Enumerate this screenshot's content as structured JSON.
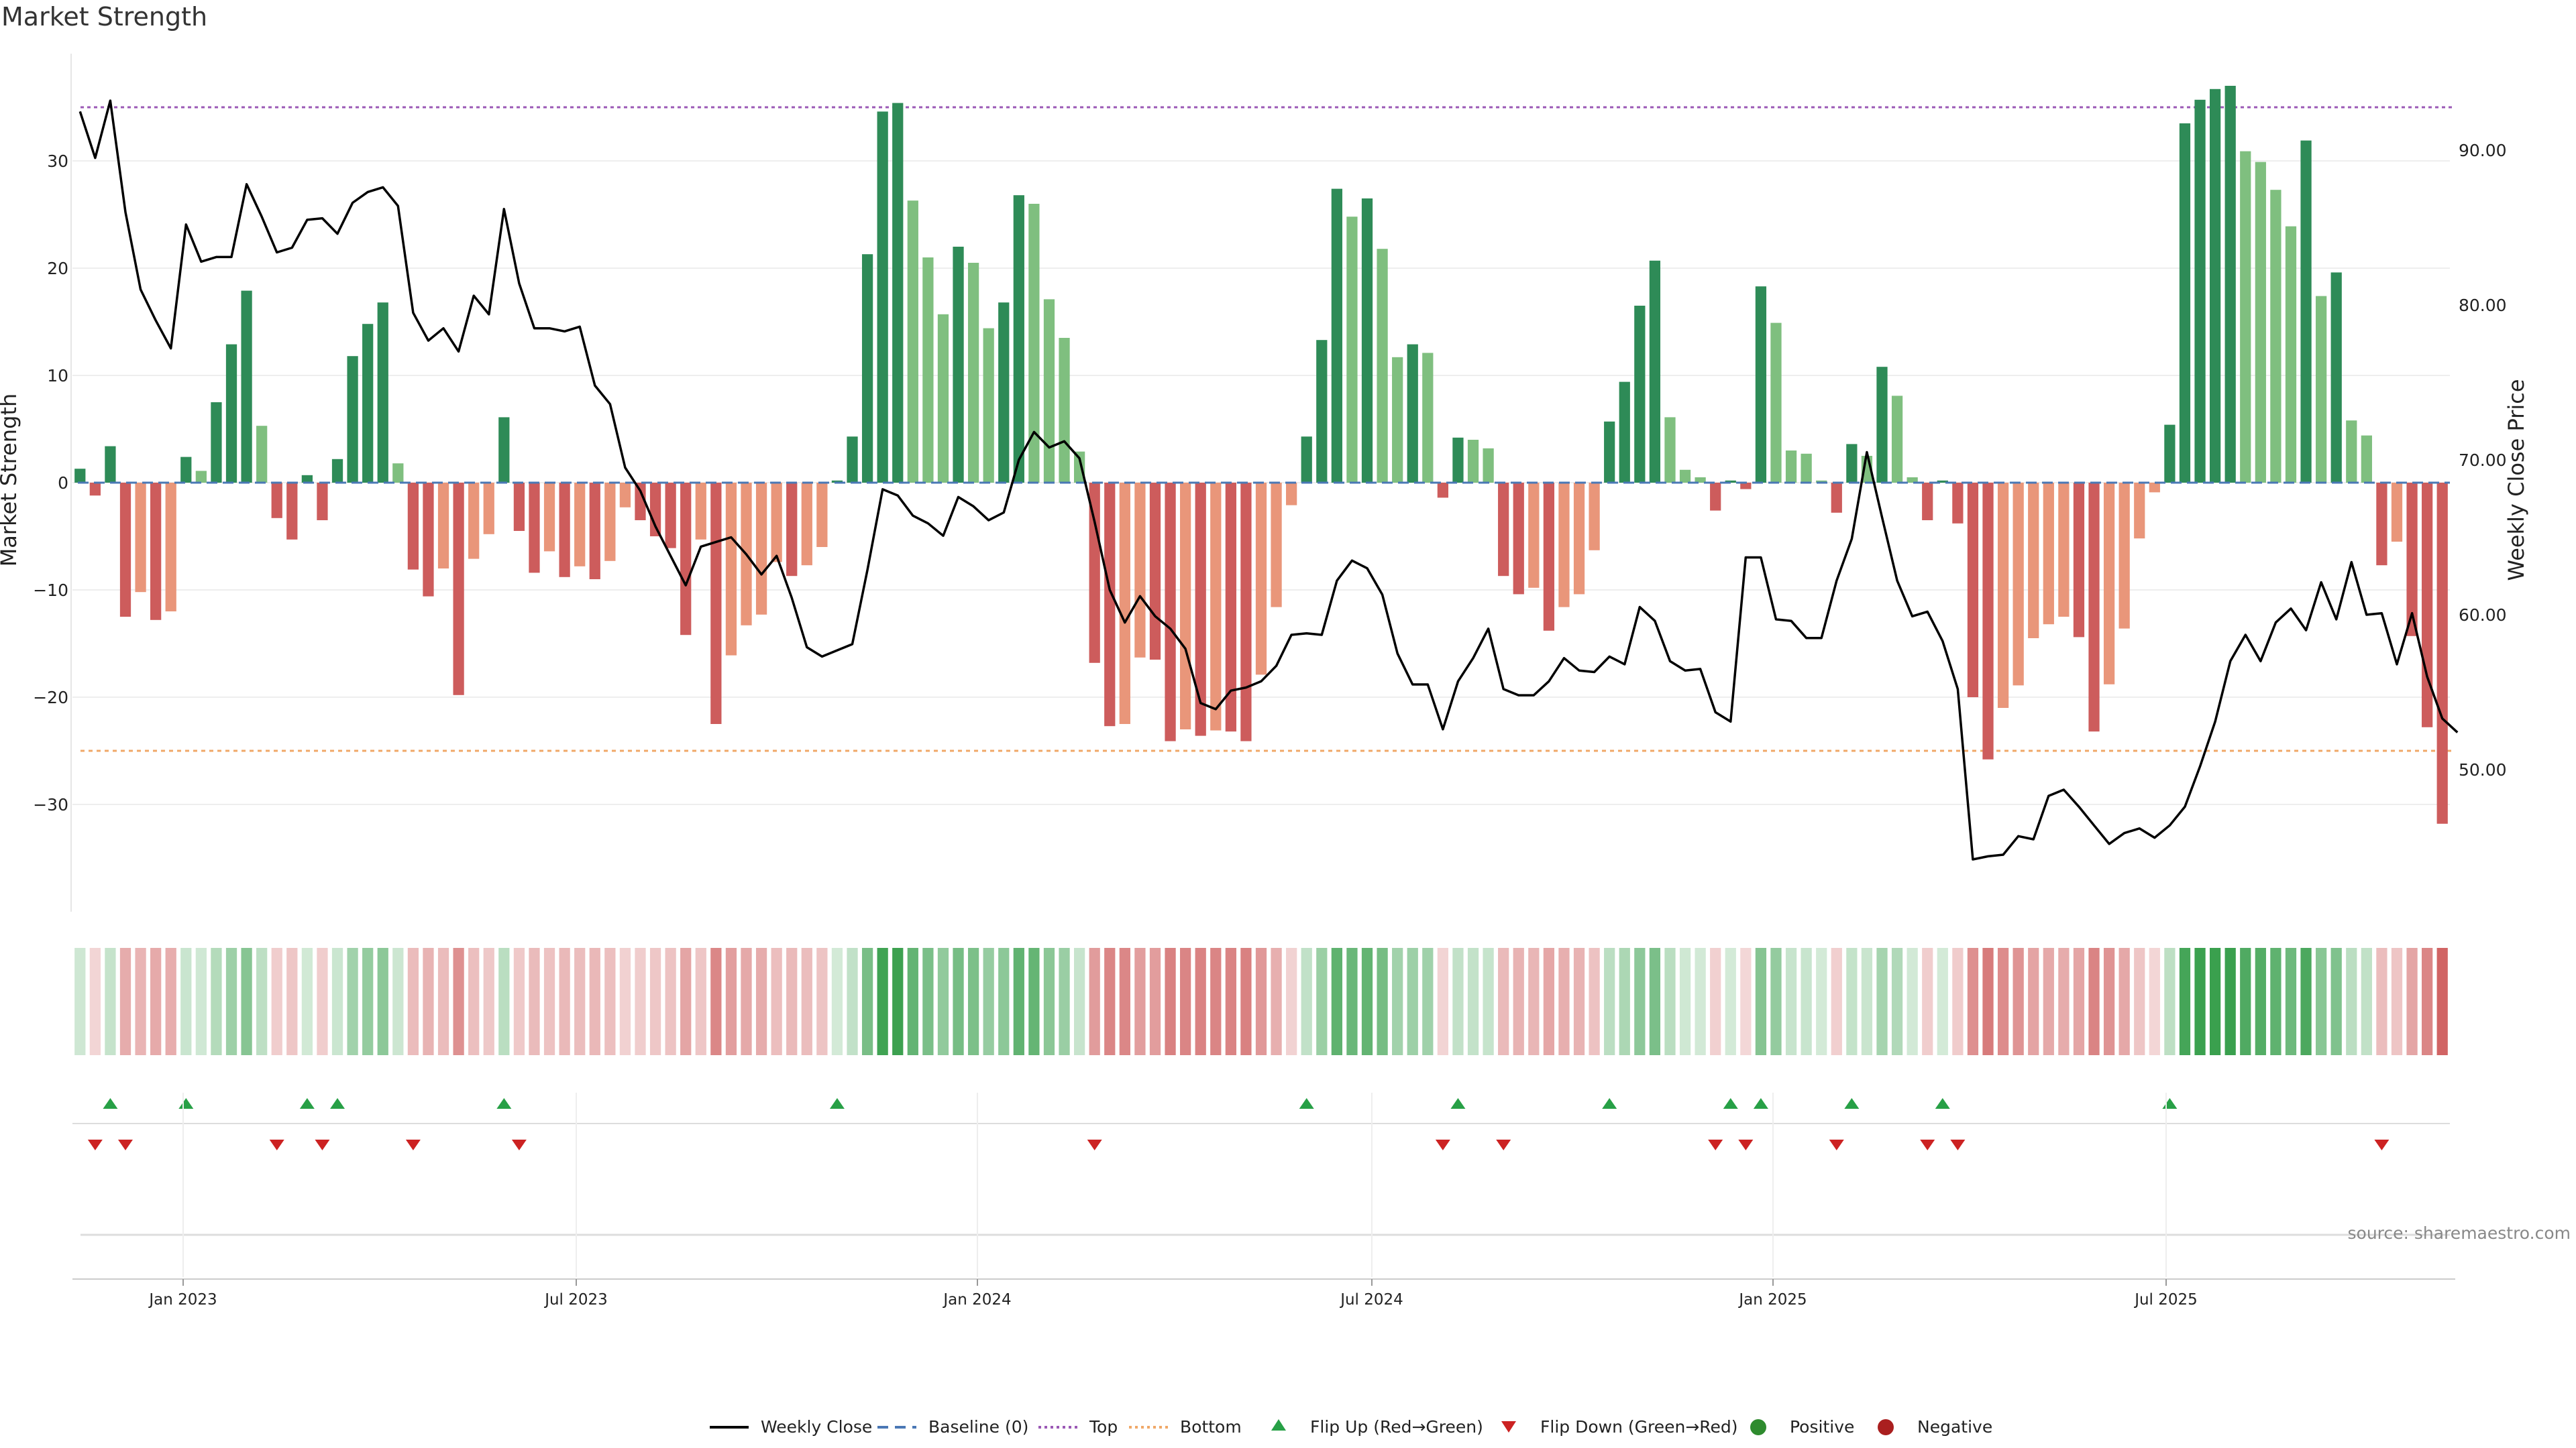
{
  "chart_data": {
    "type": "bar",
    "title": "Market Strength",
    "ylabel": "Market Strength",
    "y2label": "Weekly Close Price",
    "ylim": [
      -40,
      38
    ],
    "y2lim": [
      42,
      96
    ],
    "y_ticks": [
      30,
      20,
      10,
      0,
      -10,
      -20,
      -30
    ],
    "y2_ticks": [
      "90.00",
      "80.00",
      "70.00",
      "60.00",
      "50.00"
    ],
    "x_ticks": [
      "Jan 2023",
      "Jul 2023",
      "Jan 2024",
      "Jul 2024",
      "Jan 2025",
      "Jul 2025"
    ],
    "top_level": 35,
    "bottom_level": -25,
    "grid": true,
    "source_text": "source: sharemaestro.com",
    "legend_position": "bottom",
    "legend": [
      "Weekly Close",
      "Baseline (0)",
      "Top",
      "Bottom",
      "Flip Up (Red→Green)",
      "Flip Down (Green→Red)",
      "Positive",
      "Negative"
    ],
    "colors": {
      "pos_strong": "#2e8b57",
      "pos_light": "#7fbf7f",
      "neg_strong": "#cd5c5c",
      "neg_light": "#e9967a",
      "price": "#000000",
      "baseline": "#4a78b5",
      "top": "#9b59b6",
      "bottom": "#f0a868",
      "flip_up": "#27a046",
      "flip_down": "#cc2222",
      "positive": "#2e8b2e",
      "negative": "#aa1f1f"
    },
    "strength": [
      1.3,
      -1.2,
      3.4,
      -12.5,
      -10.2,
      -12.8,
      -12.0,
      2.4,
      1.1,
      7.5,
      12.9,
      17.9,
      5.3,
      -3.3,
      -5.3,
      0.7,
      -3.5,
      2.2,
      11.8,
      14.8,
      16.8,
      1.8,
      -8.1,
      -10.6,
      -8.0,
      -19.8,
      -7.1,
      -4.8,
      6.1,
      -4.5,
      -8.4,
      -6.4,
      -8.8,
      -7.8,
      -9.0,
      -7.3,
      -2.3,
      -3.5,
      -5.0,
      -6.1,
      -14.2,
      -5.3,
      -22.5,
      -16.1,
      -13.3,
      -12.3,
      -7.4,
      -8.7,
      -7.7,
      -6.0,
      0.2,
      4.3,
      21.3,
      34.6,
      35.4,
      26.3,
      21.0,
      15.7,
      22.0,
      20.5,
      14.4,
      16.8,
      26.8,
      26.0,
      17.1,
      13.5,
      2.9,
      -16.8,
      -22.7,
      -22.5,
      -16.3,
      -16.5,
      -24.1,
      -23.0,
      -23.6,
      -23.1,
      -23.2,
      -24.1,
      -17.9,
      -11.6,
      -2.1,
      4.3,
      13.3,
      27.4,
      24.8,
      26.5,
      21.8,
      11.7,
      12.9,
      12.1,
      -1.4,
      4.2,
      4.0,
      3.2,
      -8.7,
      -10.4,
      -9.8,
      -13.8,
      -11.6,
      -10.4,
      -6.3,
      5.7,
      9.4,
      16.5,
      20.7,
      6.1,
      1.2,
      0.5,
      -2.6,
      0.2,
      -0.6,
      18.3,
      14.9,
      3.0,
      2.7,
      0.2,
      -2.8,
      3.6,
      2.5,
      10.8,
      8.1,
      0.5,
      -3.5,
      0.2,
      -3.8,
      -20.0,
      -25.8,
      -21.0,
      -18.9,
      -14.5,
      -13.2,
      -12.5,
      -14.4,
      -23.2,
      -18.8,
      -13.6,
      -5.2,
      -0.9,
      5.4,
      33.5,
      35.7,
      36.7,
      37.0,
      30.9,
      29.9,
      27.3,
      23.9,
      31.9,
      17.4,
      19.6,
      5.8,
      4.4,
      -7.7,
      -5.5,
      -14.3,
      -22.8,
      -31.8
    ],
    "price": [
      92.5,
      89.5,
      93.2,
      86.0,
      81.0,
      79.0,
      77.2,
      85.2,
      82.8,
      83.1,
      83.1,
      87.8,
      85.7,
      83.4,
      83.7,
      85.5,
      85.6,
      84.6,
      86.6,
      87.3,
      87.6,
      86.4,
      79.5,
      77.7,
      78.5,
      77.0,
      80.6,
      79.4,
      86.2,
      81.4,
      78.5,
      78.5,
      78.3,
      78.6,
      74.8,
      73.6,
      69.5,
      68.0,
      65.7,
      63.8,
      61.9,
      64.4,
      64.7,
      65.0,
      63.9,
      62.6,
      63.8,
      61.1,
      57.9,
      57.3,
      57.7,
      58.1,
      62.9,
      68.1,
      67.7,
      66.4,
      65.9,
      65.1,
      67.6,
      67.0,
      66.1,
      66.6,
      70.0,
      71.8,
      70.8,
      71.2,
      70.1,
      66.0,
      61.6,
      59.5,
      61.2,
      59.9,
      59.1,
      57.8,
      54.3,
      53.9,
      55.1,
      55.3,
      55.7,
      56.7,
      58.7,
      58.8,
      58.7,
      62.2,
      63.5,
      63.0,
      61.3,
      57.5,
      55.5,
      55.5,
      52.6,
      55.7,
      57.2,
      59.1,
      55.2,
      54.8,
      54.8,
      55.7,
      57.2,
      56.4,
      56.3,
      57.3,
      56.8,
      60.5,
      59.6,
      57.0,
      56.4,
      56.5,
      53.7,
      53.1,
      63.7,
      63.7,
      59.7,
      59.6,
      58.5,
      58.5,
      62.2,
      64.9,
      70.5,
      66.3,
      62.2,
      59.9,
      60.2,
      58.3,
      55.2,
      44.2,
      44.4,
      44.5,
      45.7,
      45.5,
      48.3,
      48.7,
      47.6,
      46.4,
      45.2,
      45.9,
      46.2,
      45.6,
      46.4,
      47.6,
      50.2,
      53.1,
      57.0,
      58.7,
      57.0,
      59.5,
      60.4,
      59.0,
      62.1,
      59.7,
      63.4,
      60.0,
      60.1,
      56.8,
      60.1,
      56.0,
      53.3,
      52.4
    ]
  }
}
